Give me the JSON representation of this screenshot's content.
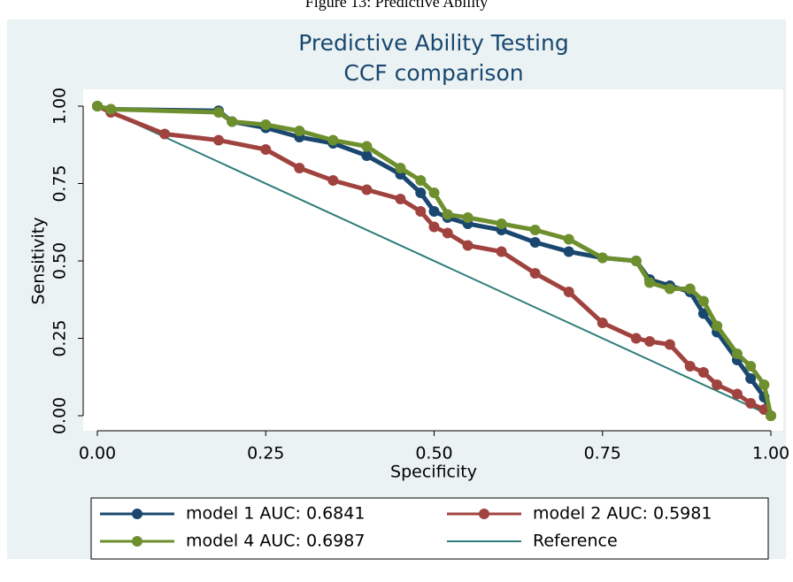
{
  "caption": "Figure 13: Predictive Ability",
  "chart_data": {
    "type": "line",
    "title": "Predictive Ability Testing",
    "subtitle": "CCF comparison",
    "x_label": "Specificity",
    "y_label": "Sensitivity",
    "xlim": [
      0,
      1
    ],
    "ylim": [
      0,
      1
    ],
    "xticks": [
      {
        "value": 0,
        "label": "0.00"
      },
      {
        "value": 0.25,
        "label": "0.25"
      },
      {
        "value": 0.5,
        "label": "0.50"
      },
      {
        "value": 0.75,
        "label": "0.75"
      },
      {
        "value": 1,
        "label": "1.00"
      }
    ],
    "yticks": [
      {
        "value": 0,
        "label": "0.00"
      },
      {
        "value": 0.25,
        "label": "0.25"
      },
      {
        "value": 0.5,
        "label": "0.50"
      },
      {
        "value": 0.75,
        "label": "0.75"
      },
      {
        "value": 1,
        "label": "1.00"
      }
    ],
    "legend": "bottom",
    "series": [
      {
        "name": "model 1 AUC: 0.6841",
        "color": "#1a476f",
        "marker": true,
        "x": [
          0,
          0.02,
          0.18,
          0.2,
          0.25,
          0.3,
          0.35,
          0.4,
          0.45,
          0.48,
          0.5,
          0.52,
          0.55,
          0.6,
          0.65,
          0.7,
          0.75,
          0.8,
          0.82,
          0.85,
          0.88,
          0.9,
          0.92,
          0.95,
          0.97,
          0.99,
          1
        ],
        "values": [
          1,
          0.99,
          0.985,
          0.95,
          0.93,
          0.9,
          0.88,
          0.84,
          0.78,
          0.72,
          0.66,
          0.64,
          0.62,
          0.6,
          0.56,
          0.53,
          0.51,
          0.5,
          0.44,
          0.42,
          0.4,
          0.33,
          0.27,
          0.18,
          0.12,
          0.06,
          0
        ]
      },
      {
        "name": "model 2 AUC: 0.5981",
        "color": "#a0433f",
        "marker": true,
        "x": [
          0,
          0.02,
          0.1,
          0.18,
          0.25,
          0.3,
          0.35,
          0.4,
          0.45,
          0.48,
          0.5,
          0.52,
          0.55,
          0.6,
          0.65,
          0.7,
          0.75,
          0.8,
          0.82,
          0.85,
          0.88,
          0.9,
          0.92,
          0.95,
          0.97,
          0.99,
          1
        ],
        "values": [
          1,
          0.98,
          0.91,
          0.89,
          0.86,
          0.8,
          0.76,
          0.73,
          0.7,
          0.66,
          0.61,
          0.59,
          0.55,
          0.53,
          0.46,
          0.4,
          0.3,
          0.25,
          0.24,
          0.23,
          0.16,
          0.14,
          0.1,
          0.07,
          0.04,
          0.02,
          0
        ]
      },
      {
        "name": "model 4 AUC: 0.6987",
        "color": "#6e8f2e",
        "marker": true,
        "x": [
          0,
          0.02,
          0.18,
          0.2,
          0.25,
          0.3,
          0.35,
          0.4,
          0.45,
          0.48,
          0.5,
          0.52,
          0.55,
          0.6,
          0.65,
          0.7,
          0.75,
          0.8,
          0.82,
          0.85,
          0.88,
          0.9,
          0.92,
          0.95,
          0.97,
          0.99,
          1
        ],
        "values": [
          1,
          0.99,
          0.98,
          0.95,
          0.94,
          0.92,
          0.89,
          0.87,
          0.8,
          0.76,
          0.72,
          0.65,
          0.64,
          0.62,
          0.6,
          0.57,
          0.51,
          0.5,
          0.43,
          0.41,
          0.41,
          0.37,
          0.29,
          0.2,
          0.16,
          0.1,
          0
        ]
      },
      {
        "name": "Reference",
        "color": "#2e7d78",
        "marker": false,
        "x": [
          0,
          1
        ],
        "values": [
          1,
          0
        ]
      }
    ]
  }
}
